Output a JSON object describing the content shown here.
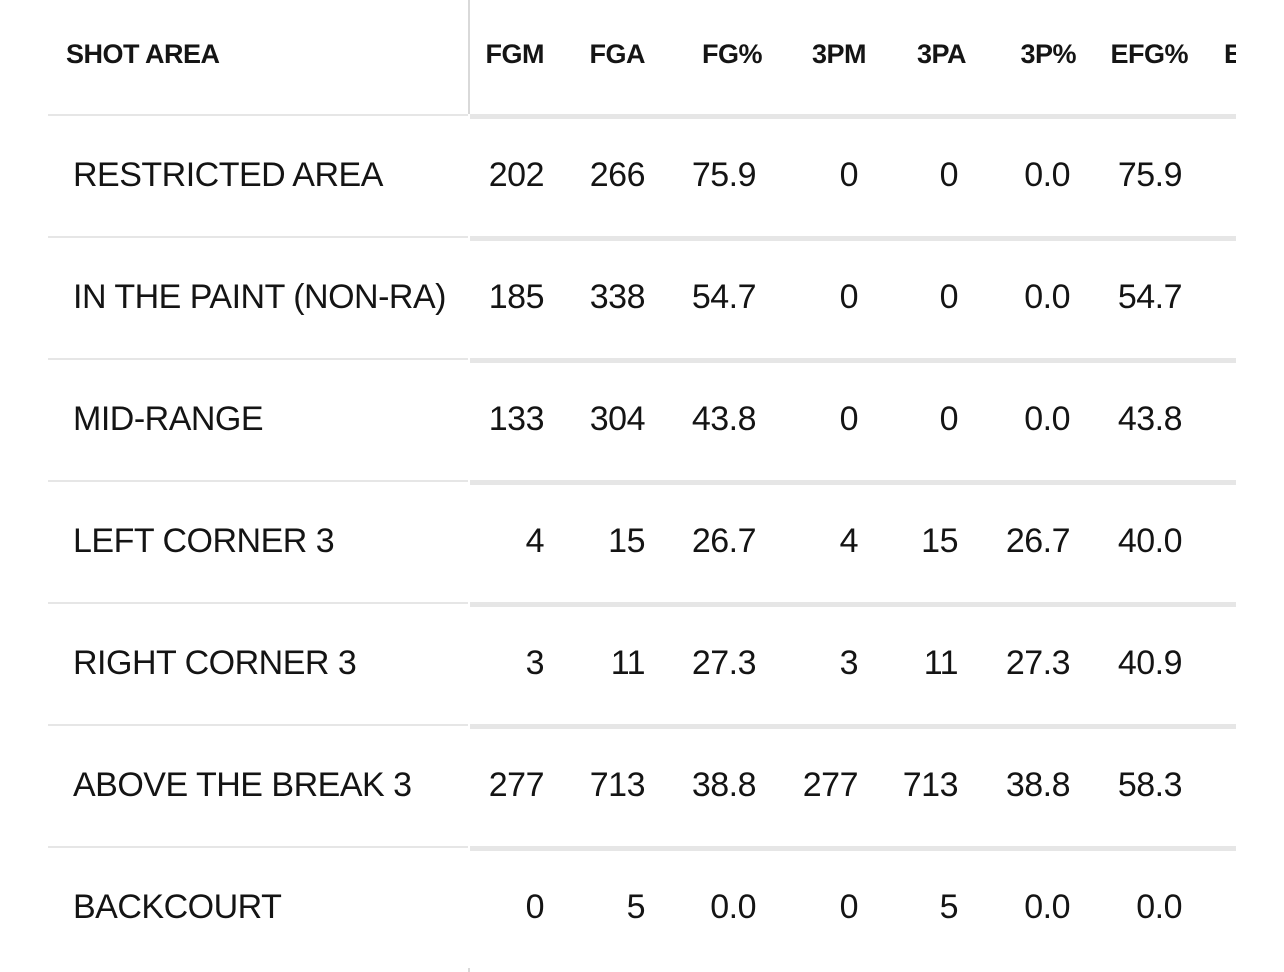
{
  "table": {
    "headers": {
      "label": "SHOT AREA",
      "fgm": "FGM",
      "fga": "FGA",
      "fgp": "FG%",
      "tpm": "3PM",
      "tpa": "3PA",
      "tpp": "3P%",
      "efg": "EFG%",
      "next": "E"
    },
    "rows": [
      {
        "label": "RESTRICTED AREA",
        "fgm": "202",
        "fga": "266",
        "fgp": "75.9",
        "tpm": "0",
        "tpa": "0",
        "tpp": "0.0",
        "efg": "75.9"
      },
      {
        "label": "IN THE PAINT (NON-RA)",
        "fgm": "185",
        "fga": "338",
        "fgp": "54.7",
        "tpm": "0",
        "tpa": "0",
        "tpp": "0.0",
        "efg": "54.7"
      },
      {
        "label": "MID-RANGE",
        "fgm": "133",
        "fga": "304",
        "fgp": "43.8",
        "tpm": "0",
        "tpa": "0",
        "tpp": "0.0",
        "efg": "43.8"
      },
      {
        "label": "LEFT CORNER 3",
        "fgm": "4",
        "fga": "15",
        "fgp": "26.7",
        "tpm": "4",
        "tpa": "15",
        "tpp": "26.7",
        "efg": "40.0"
      },
      {
        "label": "RIGHT CORNER 3",
        "fgm": "3",
        "fga": "11",
        "fgp": "27.3",
        "tpm": "3",
        "tpa": "11",
        "tpp": "27.3",
        "efg": "40.9"
      },
      {
        "label": "ABOVE THE BREAK 3",
        "fgm": "277",
        "fga": "713",
        "fgp": "38.8",
        "tpm": "277",
        "tpa": "713",
        "tpp": "38.8",
        "efg": "58.3"
      },
      {
        "label": "BACKCOURT",
        "fgm": "0",
        "fga": "5",
        "fgp": "0.0",
        "tpm": "0",
        "tpa": "5",
        "tpp": "0.0",
        "efg": "0.0"
      }
    ]
  },
  "colors": {
    "text": "#141414",
    "divider": "#e6e6e6",
    "column_divider": "#d9d9d9",
    "background": "#ffffff"
  }
}
